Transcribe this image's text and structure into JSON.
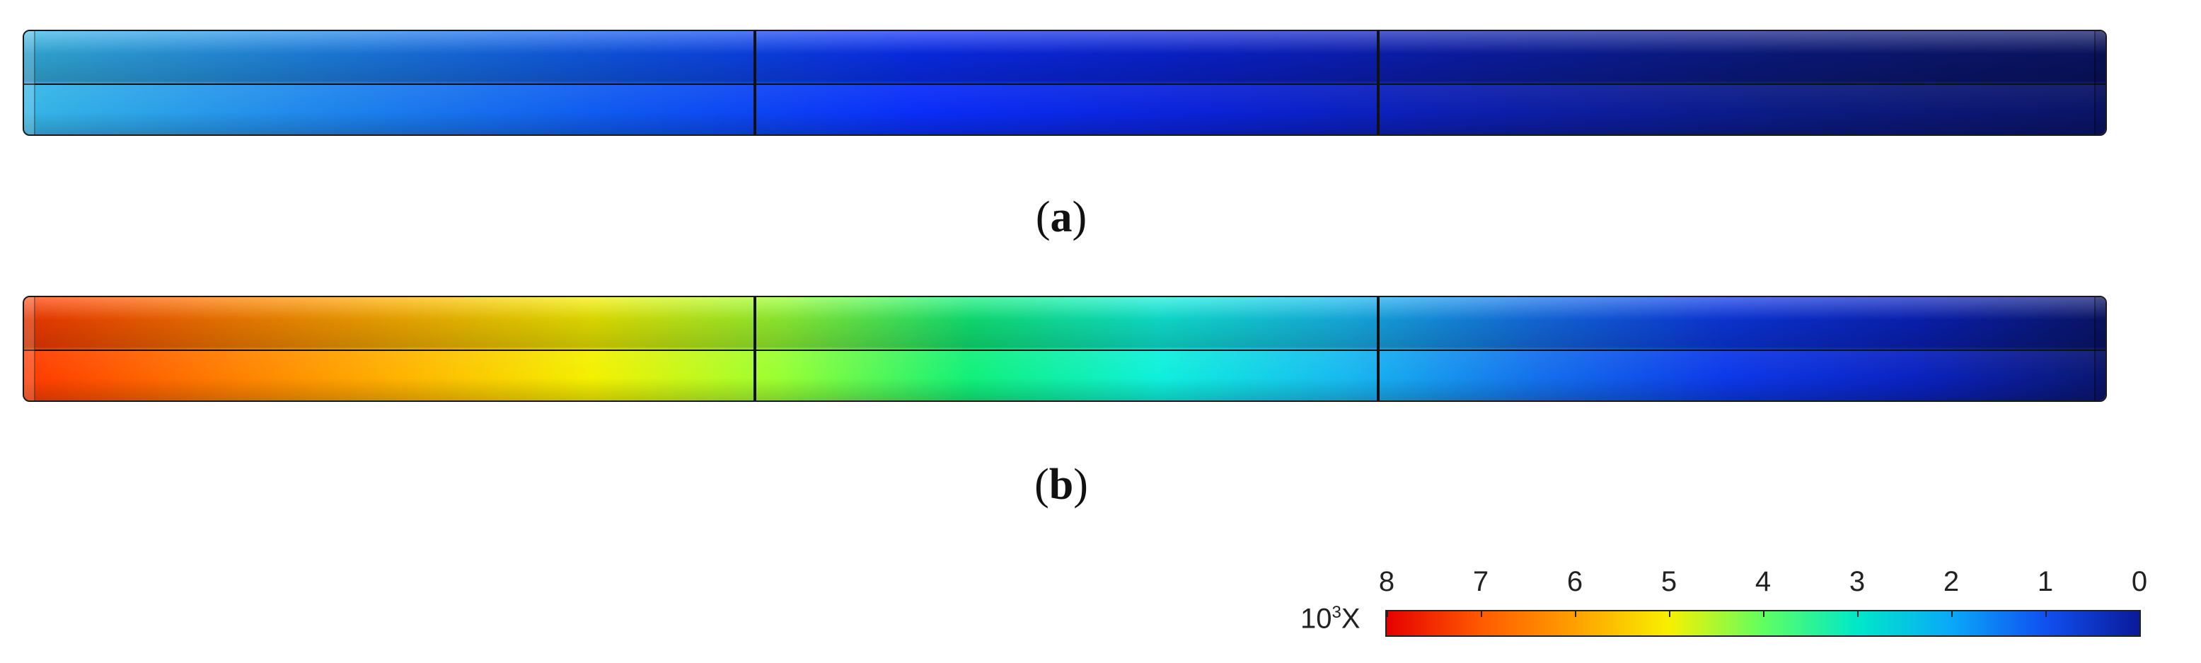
{
  "panels": [
    {
      "id": "a",
      "label": "a",
      "stops": [
        "#36b6e6",
        "#1f86ec",
        "#0f58f0",
        "#0a2ef8",
        "#0b22d6",
        "#0c1ea8",
        "#0b1a80",
        "#0a1466"
      ]
    },
    {
      "id": "b",
      "label": "b",
      "stops": [
        "#ff3a00",
        "#ff7a00",
        "#ffb400",
        "#f4f000",
        "#99ff33",
        "#11f07a",
        "#0ff0dc",
        "#18b8f0",
        "#1470ec",
        "#0c38e8",
        "#0a22c0",
        "#0a1670"
      ]
    }
  ],
  "legend": {
    "unit_prefix": "10",
    "unit_exp": "3",
    "unit_suffix": "X",
    "ticks": [
      "8",
      "7",
      "6",
      "5",
      "4",
      "3",
      "2",
      "1",
      "0"
    ],
    "colors": [
      "#e60000",
      "#ff5a00",
      "#ffa000",
      "#f8f000",
      "#60ff60",
      "#00e8c8",
      "#0aa8f8",
      "#1050f0",
      "#0a1a9a"
    ]
  }
}
